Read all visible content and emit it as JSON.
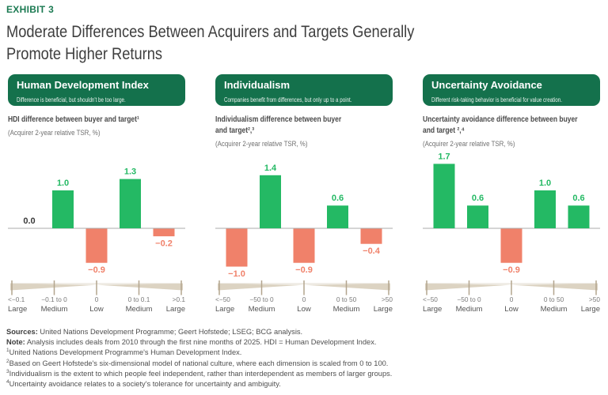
{
  "exhibit_label": "EXHIBIT 3",
  "title_lines": [
    "Moderate Differences Between Acquirers and Targets Generally",
    "Promote Higher Returns"
  ],
  "colors": {
    "exhibit_green": "#1B7A52",
    "header_green": "#14714C",
    "bar_positive": "#24B964",
    "bar_negative": "#F0816A",
    "axis_line": "#ABABAB",
    "ruler_wedge": "#DCD3C2",
    "ruler_line": "#D8CFBF",
    "ruler_tick": "#B3A58E",
    "zero_label": "#3A3A3A"
  },
  "panels": [
    {
      "title": "Human Development Index",
      "tagline": "Difference is beneficial, but shouldn't be too large."
    },
    {
      "title": "Individualism",
      "tagline": "Companies benefit from differences, but only up to a point."
    },
    {
      "title": "Uncertainty Avoidance",
      "tagline": "Different risk-taking behavior is beneficial for value creation."
    }
  ],
  "chart_data": [
    {
      "type": "bar",
      "title": "HDI difference between buyer and target¹",
      "title_lines": [
        "HDI difference between buyer and target¹"
      ],
      "subtitle": "(Acquirer 2-year relative TSR, %)",
      "ylabel": "Acquirer 2-year relative TSR, %",
      "categories": [
        "<−0.1",
        "−0.1 to 0",
        "0",
        "0 to 0.1",
        ">0.1"
      ],
      "category_levels": [
        "Large",
        "Medium",
        "Low",
        "Medium",
        "Large"
      ],
      "values": [
        0.0,
        1.0,
        -0.9,
        1.3,
        -0.2
      ],
      "ylim": [
        -1.1,
        1.8
      ],
      "grid": false
    },
    {
      "type": "bar",
      "title": "Individualism difference between buyer and target²,³",
      "title_lines": [
        "Individualism difference between buyer",
        "and target²,³"
      ],
      "subtitle": "(Acquirer 2-year relative TSR, %)",
      "ylabel": "Acquirer 2-year relative TSR, %",
      "categories": [
        "<−50",
        "−50 to 0",
        "0",
        "0 to 50",
        ">50"
      ],
      "category_levels": [
        "Large",
        "Medium",
        "Low",
        "Medium",
        "Large"
      ],
      "values": [
        -1.0,
        1.4,
        -0.9,
        0.6,
        -0.4
      ],
      "ylim": [
        -1.1,
        1.8
      ],
      "grid": false
    },
    {
      "type": "bar",
      "title": "Uncertainty avoidance difference between buyer and target ²,⁴",
      "title_lines": [
        "Uncertainty avoidance difference between buyer",
        "and target ²,⁴"
      ],
      "subtitle": "(Acquirer 2-year relative TSR, %)",
      "ylabel": "Acquirer 2-year relative TSR, %",
      "categories": [
        "<−50",
        "−50 to 0",
        "0",
        "0 to 50",
        ">50"
      ],
      "category_levels": [
        "Large",
        "Medium",
        "Low",
        "Medium",
        "Large"
      ],
      "values": [
        1.7,
        0.6,
        -0.9,
        1.0,
        0.6
      ],
      "ylim": [
        -1.1,
        1.8
      ],
      "grid": false
    }
  ],
  "footnotes": [
    {
      "lead": "Sources:",
      "text": " United Nations Development Programme; Geert Hofstede; LSEG; BCG analysis."
    },
    {
      "lead": "Note:",
      "text": " Analysis includes deals from 2010 through the first nine months of 2025. HDI = Human Development Index."
    },
    {
      "sup": "1",
      "text": "United Nations Development Programme's Human Development Index."
    },
    {
      "sup": "2",
      "text": "Based on Geert Hofstede's six-dimensional model of national culture, where each dimension is scaled from 0 to 100."
    },
    {
      "sup": "3",
      "text": "Individualism is the extent to which people feel independent, rather than interdependent as members of larger groups."
    },
    {
      "sup": "4",
      "text": "Uncertainty avoidance relates to a society's tolerance for uncertainty and ambiguity."
    }
  ]
}
